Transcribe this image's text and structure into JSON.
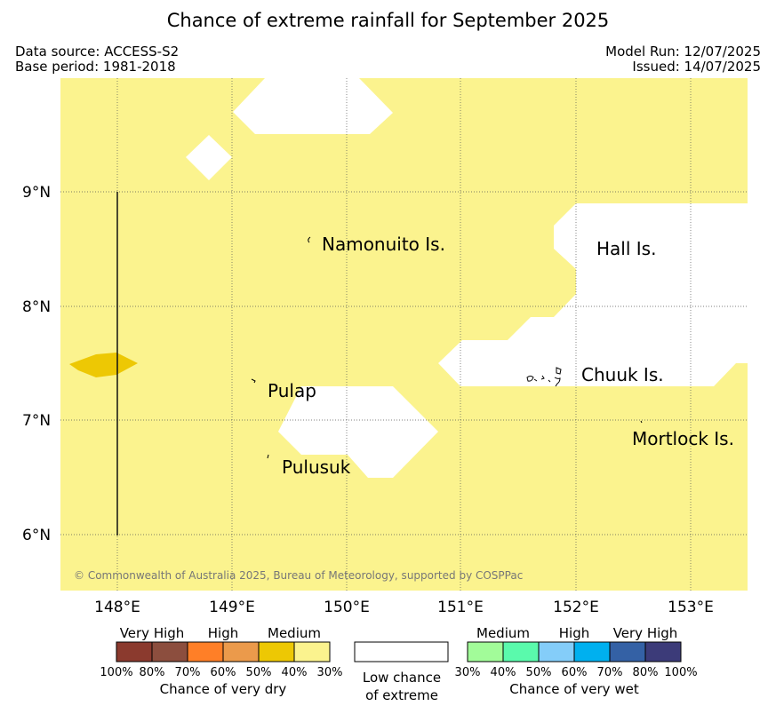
{
  "title": "Chance of extreme rainfall for September 2025",
  "data_source": "Data source: ACCESS-S2",
  "base_period": "Base period: 1981-2018",
  "model_run": "Model Run: 12/07/2025",
  "issued": "Issued: 14/07/2025",
  "copyright": "© Commonwealth of Australia 2025, Bureau of Meteorology, supported by COSPPac",
  "map": {
    "lat_labels": [
      "9°N",
      "8°N",
      "7°N",
      "6°N"
    ],
    "lon_labels": [
      "148°E",
      "149°E",
      "150°E",
      "151°E",
      "152°E",
      "153°E"
    ],
    "places": [
      "Namonuito Is.",
      "Hall Is.",
      "Pulap",
      "Chuuk Is.",
      "Pulusuk",
      "Mortlock Is."
    ],
    "colors": {
      "background_30_40_dry": "#fbf38e",
      "dry_40_50": "#edc804",
      "low_chance": "#ffffff",
      "coast": "#000000"
    }
  },
  "legend": {
    "dry": {
      "headers": [
        "Very High",
        "High",
        "Medium"
      ],
      "ticks": [
        "100%",
        "80%",
        "70%",
        "60%",
        "50%",
        "40%",
        "30%"
      ],
      "colors": [
        "#8b3a2e",
        "#8c4e3e",
        "#ff7f27",
        "#eb9a4b",
        "#edc804",
        "#fbf38e"
      ],
      "caption": "Chance of very dry"
    },
    "low": {
      "line1": "Low chance",
      "line2": "of extreme"
    },
    "wet": {
      "headers": [
        "Medium",
        "High",
        "Very High"
      ],
      "ticks": [
        "30%",
        "40%",
        "50%",
        "60%",
        "70%",
        "80%",
        "100%"
      ],
      "colors": [
        "#a2fc99",
        "#5afaac",
        "#84cdf9",
        "#00b0ef",
        "#3461a5",
        "#3c3b79"
      ],
      "caption": "Chance of very wet"
    }
  }
}
